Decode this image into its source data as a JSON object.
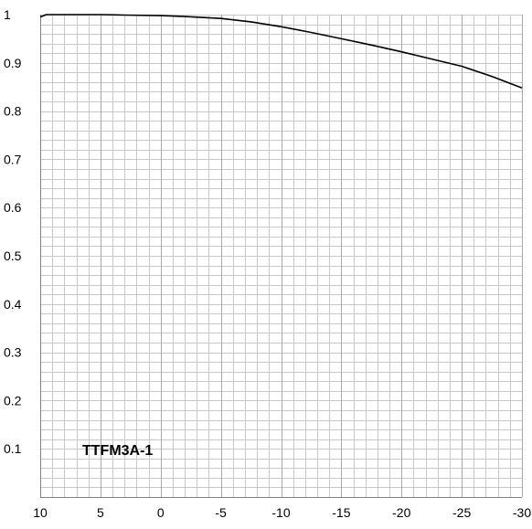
{
  "chart_data": {
    "type": "line",
    "title": "",
    "xlabel": "",
    "ylabel": "",
    "xlim": [
      10,
      -30
    ],
    "ylim": [
      0,
      1
    ],
    "x_ticks": [
      10,
      5,
      0,
      -5,
      -10,
      -15,
      -20,
      -25,
      -30
    ],
    "x_tick_labels": [
      "10",
      "5",
      "0",
      "-5",
      "-10",
      "-15",
      "-20",
      "-25",
      "-30"
    ],
    "y_ticks": [
      0.1,
      0.2,
      0.3,
      0.4,
      0.5,
      0.6,
      0.7,
      0.8,
      0.9,
      1
    ],
    "y_tick_labels": [
      "0.1",
      "0.2",
      "0.3",
      "0.4",
      "0.5",
      "0.6",
      "0.7",
      "0.8",
      "0.9",
      "1"
    ],
    "grid": true,
    "annotation": "TTFM3A-1",
    "series": [
      {
        "x": [
          10,
          9.5,
          8,
          5,
          3,
          0,
          -2,
          -5,
          -7.5,
          -10,
          -12.5,
          -15,
          -17.5,
          -20,
          -22.5,
          -25,
          -27.5,
          -30
        ],
        "y": [
          0.995,
          1.0,
          1.0,
          1.0,
          0.999,
          0.998,
          0.996,
          0.992,
          0.985,
          0.975,
          0.963,
          0.95,
          0.937,
          0.923,
          0.908,
          0.893,
          0.872,
          0.848
        ]
      }
    ],
    "colors": {
      "line": "#000000",
      "grid": "#c8c8c8",
      "axis": "#808080"
    }
  }
}
